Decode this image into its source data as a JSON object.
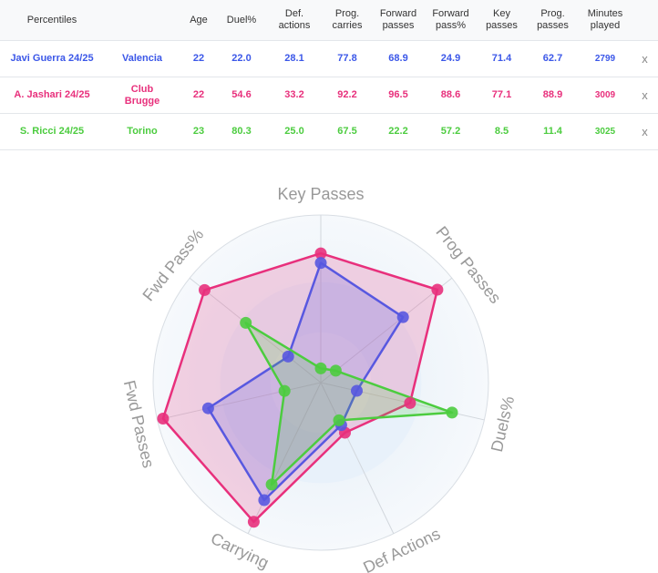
{
  "table": {
    "headers": [
      "Percentiles",
      "Age",
      "Duel%",
      "Def.\nactions",
      "Prog.\ncarries",
      "Forward\npasses",
      "Forward\npass%",
      "Key\npasses",
      "Prog.\npasses",
      "Minutes\nplayed"
    ],
    "rows": [
      {
        "player": "Javi Guerra 24/25",
        "team": "Valencia",
        "age": "22",
        "duel": "22.0",
        "def_actions": "28.1",
        "prog_carries": "77.8",
        "fwd_passes": "68.9",
        "fwd_pass_pct": "24.9",
        "key_passes": "71.4",
        "prog_passes": "62.7",
        "minutes": "2799",
        "remove": "x",
        "color": "#3b57e8"
      },
      {
        "player": "A. Jashari 24/25",
        "team": "Club\nBrugge",
        "age": "22",
        "duel": "54.6",
        "def_actions": "33.2",
        "prog_carries": "92.2",
        "fwd_passes": "96.5",
        "fwd_pass_pct": "88.6",
        "key_passes": "77.1",
        "prog_passes": "88.9",
        "minutes": "3009",
        "remove": "x",
        "color": "#e8307c"
      },
      {
        "player": "S. Ricci 24/25",
        "team": "Torino",
        "age": "23",
        "duel": "80.3",
        "def_actions": "25.0",
        "prog_carries": "67.5",
        "fwd_passes": "22.2",
        "fwd_pass_pct": "57.2",
        "key_passes": "8.5",
        "prog_passes": "11.4",
        "minutes": "3025",
        "remove": "x",
        "color": "#4ccc3f"
      }
    ]
  },
  "chart_data": {
    "type": "radar",
    "axes": [
      "Key Passes",
      "Prog Passes",
      "Duels%",
      "Def Actions",
      "Carrying",
      "Fwd Passes",
      "Fwd Pass%"
    ],
    "range": [
      0,
      100
    ],
    "series": [
      {
        "name": "A. Jashari 24/25",
        "color": "#e8307c",
        "values": [
          77.1,
          88.9,
          54.6,
          33.2,
          92.2,
          96.5,
          88.6
        ]
      },
      {
        "name": "Javi Guerra 24/25",
        "color": "#5858e0",
        "values": [
          71.4,
          62.7,
          22.0,
          28.1,
          77.8,
          68.9,
          24.9
        ]
      },
      {
        "name": "S. Ricci 24/25",
        "color": "#4ccc3f",
        "values": [
          8.5,
          11.4,
          80.3,
          25.0,
          67.5,
          22.2,
          57.2
        ]
      }
    ],
    "label_color": "#999999"
  }
}
